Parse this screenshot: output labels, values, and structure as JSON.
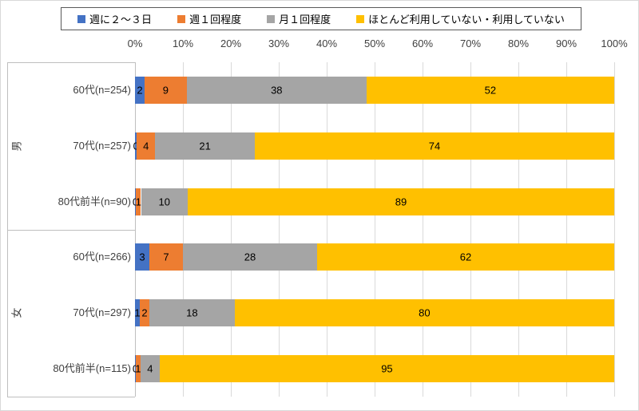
{
  "legend": {
    "items": [
      {
        "label": "週に２～３日",
        "color": "#4472C4"
      },
      {
        "label": "週１回程度",
        "color": "#ED7D31"
      },
      {
        "label": "月１回程度",
        "color": "#A5A5A5"
      },
      {
        "label": "ほとんど利用していない・利用していない",
        "color": "#FFC000"
      }
    ]
  },
  "axis": {
    "tick_labels": [
      "0%",
      "10%",
      "20%",
      "30%",
      "40%",
      "50%",
      "60%",
      "70%",
      "80%",
      "90%",
      "100%"
    ]
  },
  "groups": [
    {
      "label": "男"
    },
    {
      "label": "女"
    }
  ],
  "chart_data": {
    "type": "bar",
    "variant": "horizontal-stacked-100",
    "title": "",
    "xlabel": "",
    "ylabel": "",
    "xlim": [
      0,
      100
    ],
    "tick_step": 10,
    "grid": true,
    "legend_position": "top",
    "categories": [
      "60代(n=254)",
      "70代(n=257)",
      "80代前半(n=90)",
      "60代(n=266)",
      "70代(n=297)",
      "80代前半(n=115)"
    ],
    "category_groups": [
      "男",
      "男",
      "男",
      "女",
      "女",
      "女"
    ],
    "series": [
      {
        "name": "週に２～３日",
        "color": "#4472C4",
        "values": [
          2,
          0,
          0,
          3,
          1,
          0
        ]
      },
      {
        "name": "週１回程度",
        "color": "#ED7D31",
        "values": [
          9,
          4,
          1,
          7,
          2,
          1
        ]
      },
      {
        "name": "月１回程度",
        "color": "#A5A5A5",
        "values": [
          38,
          21,
          10,
          28,
          18,
          4
        ]
      },
      {
        "name": "ほとんど利用していない・利用していない",
        "color": "#FFC000",
        "values": [
          52,
          74,
          89,
          62,
          80,
          95
        ]
      }
    ],
    "segment_widths_pct": [
      [
        2,
        8.8,
        37.5,
        51.7
      ],
      [
        0.4,
        3.8,
        20.8,
        75.0
      ],
      [
        0.15,
        1.1,
        9.75,
        89.0
      ],
      [
        3,
        7,
        28,
        62
      ],
      [
        1,
        2,
        17.8,
        79.2
      ],
      [
        0.15,
        1.0,
        4.0,
        94.85
      ]
    ]
  }
}
